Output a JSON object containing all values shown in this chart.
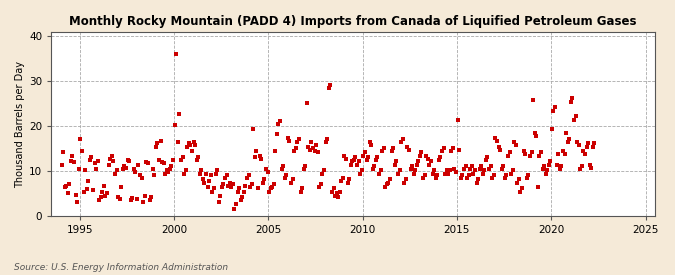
{
  "title": "Monthly Rocky Mountain (PADD 4) Imports from Canada of Liquified Petroleum Gases",
  "ylabel": "Thousand Barrels per Day",
  "source_text": "Source: U.S. Energy Information Administration",
  "figure_bg": "#f5ead8",
  "plot_bg": "#ffffff",
  "marker_color": "#cc0000",
  "xlim": [
    1993.5,
    2025.5
  ],
  "ylim": [
    0,
    41
  ],
  "yticks": [
    0,
    10,
    20,
    30,
    40
  ],
  "xticks": [
    1995,
    2000,
    2005,
    2010,
    2015,
    2020,
    2025
  ],
  "marker_size": 9,
  "data_points": [
    [
      1994.04,
      11.5
    ],
    [
      1994.12,
      14.2
    ],
    [
      1994.21,
      6.5
    ],
    [
      1994.29,
      6.8
    ],
    [
      1994.37,
      5.2
    ],
    [
      1994.46,
      7.1
    ],
    [
      1994.54,
      12.3
    ],
    [
      1994.62,
      13.5
    ],
    [
      1994.71,
      12.1
    ],
    [
      1994.79,
      4.8
    ],
    [
      1994.87,
      3.2
    ],
    [
      1994.96,
      10.5
    ],
    [
      1995.04,
      17.2
    ],
    [
      1995.12,
      14.5
    ],
    [
      1995.21,
      5.5
    ],
    [
      1995.29,
      10.2
    ],
    [
      1995.37,
      6.1
    ],
    [
      1995.46,
      7.8
    ],
    [
      1995.54,
      12.5
    ],
    [
      1995.62,
      13.1
    ],
    [
      1995.71,
      5.9
    ],
    [
      1995.79,
      11.8
    ],
    [
      1995.87,
      10.5
    ],
    [
      1995.96,
      12.2
    ],
    [
      1996.04,
      3.5
    ],
    [
      1996.12,
      4.2
    ],
    [
      1996.21,
      5.5
    ],
    [
      1996.29,
      6.8
    ],
    [
      1996.37,
      4.5
    ],
    [
      1996.46,
      5.2
    ],
    [
      1996.54,
      11.5
    ],
    [
      1996.62,
      12.8
    ],
    [
      1996.71,
      13.5
    ],
    [
      1996.79,
      12.2
    ],
    [
      1996.87,
      9.5
    ],
    [
      1996.96,
      10.2
    ],
    [
      1997.04,
      4.2
    ],
    [
      1997.12,
      3.8
    ],
    [
      1997.21,
      6.5
    ],
    [
      1997.29,
      10.5
    ],
    [
      1997.37,
      11.2
    ],
    [
      1997.46,
      10.8
    ],
    [
      1997.54,
      12.5
    ],
    [
      1997.62,
      12.2
    ],
    [
      1997.71,
      3.5
    ],
    [
      1997.79,
      4.1
    ],
    [
      1997.87,
      10.5
    ],
    [
      1997.96,
      9.8
    ],
    [
      1998.04,
      3.8
    ],
    [
      1998.12,
      11.5
    ],
    [
      1998.21,
      9.2
    ],
    [
      1998.29,
      8.5
    ],
    [
      1998.37,
      3.2
    ],
    [
      1998.46,
      4.5
    ],
    [
      1998.54,
      12.1
    ],
    [
      1998.62,
      11.8
    ],
    [
      1998.71,
      3.5
    ],
    [
      1998.79,
      4.2
    ],
    [
      1998.87,
      10.5
    ],
    [
      1998.96,
      9.2
    ],
    [
      1999.04,
      15.5
    ],
    [
      1999.12,
      16.2
    ],
    [
      1999.21,
      12.5
    ],
    [
      1999.29,
      16.8
    ],
    [
      1999.37,
      12.1
    ],
    [
      1999.46,
      11.8
    ],
    [
      1999.54,
      9.5
    ],
    [
      1999.62,
      10.2
    ],
    [
      1999.71,
      9.8
    ],
    [
      1999.79,
      10.5
    ],
    [
      1999.87,
      11.2
    ],
    [
      1999.96,
      12.5
    ],
    [
      2000.04,
      20.2
    ],
    [
      2000.12,
      36.0
    ],
    [
      2000.21,
      16.5
    ],
    [
      2000.29,
      22.8
    ],
    [
      2000.37,
      12.5
    ],
    [
      2000.46,
      13.2
    ],
    [
      2000.54,
      9.5
    ],
    [
      2000.62,
      10.2
    ],
    [
      2000.71,
      15.5
    ],
    [
      2000.79,
      16.2
    ],
    [
      2000.87,
      15.8
    ],
    [
      2000.96,
      14.5
    ],
    [
      2001.04,
      16.5
    ],
    [
      2001.12,
      15.8
    ],
    [
      2001.21,
      12.5
    ],
    [
      2001.29,
      13.2
    ],
    [
      2001.37,
      9.5
    ],
    [
      2001.46,
      10.2
    ],
    [
      2001.54,
      8.2
    ],
    [
      2001.62,
      7.5
    ],
    [
      2001.71,
      9.5
    ],
    [
      2001.79,
      6.5
    ],
    [
      2001.87,
      7.8
    ],
    [
      2001.96,
      9.2
    ],
    [
      2002.04,
      5.5
    ],
    [
      2002.12,
      6.2
    ],
    [
      2002.21,
      9.5
    ],
    [
      2002.29,
      10.2
    ],
    [
      2002.37,
      3.2
    ],
    [
      2002.46,
      4.5
    ],
    [
      2002.54,
      6.5
    ],
    [
      2002.62,
      7.2
    ],
    [
      2002.71,
      8.5
    ],
    [
      2002.79,
      9.2
    ],
    [
      2002.87,
      6.8
    ],
    [
      2002.96,
      7.5
    ],
    [
      2003.04,
      6.5
    ],
    [
      2003.12,
      7.2
    ],
    [
      2003.21,
      1.5
    ],
    [
      2003.29,
      2.8
    ],
    [
      2003.37,
      5.5
    ],
    [
      2003.46,
      6.2
    ],
    [
      2003.54,
      3.5
    ],
    [
      2003.62,
      4.2
    ],
    [
      2003.71,
      5.5
    ],
    [
      2003.79,
      6.8
    ],
    [
      2003.87,
      8.5
    ],
    [
      2003.96,
      9.2
    ],
    [
      2004.04,
      6.5
    ],
    [
      2004.12,
      7.2
    ],
    [
      2004.21,
      19.5
    ],
    [
      2004.29,
      13.2
    ],
    [
      2004.37,
      14.5
    ],
    [
      2004.46,
      6.2
    ],
    [
      2004.54,
      13.5
    ],
    [
      2004.62,
      12.8
    ],
    [
      2004.71,
      7.5
    ],
    [
      2004.79,
      8.2
    ],
    [
      2004.87,
      10.5
    ],
    [
      2004.96,
      9.8
    ],
    [
      2005.04,
      5.5
    ],
    [
      2005.12,
      6.2
    ],
    [
      2005.21,
      6.5
    ],
    [
      2005.29,
      7.2
    ],
    [
      2005.37,
      14.5
    ],
    [
      2005.46,
      18.2
    ],
    [
      2005.54,
      20.5
    ],
    [
      2005.62,
      21.2
    ],
    [
      2005.71,
      10.5
    ],
    [
      2005.79,
      11.2
    ],
    [
      2005.87,
      8.5
    ],
    [
      2005.96,
      9.2
    ],
    [
      2006.04,
      17.5
    ],
    [
      2006.12,
      16.8
    ],
    [
      2006.21,
      7.5
    ],
    [
      2006.29,
      8.2
    ],
    [
      2006.37,
      14.5
    ],
    [
      2006.46,
      15.2
    ],
    [
      2006.54,
      16.5
    ],
    [
      2006.62,
      17.2
    ],
    [
      2006.71,
      5.5
    ],
    [
      2006.79,
      6.2
    ],
    [
      2006.87,
      10.5
    ],
    [
      2006.96,
      11.2
    ],
    [
      2007.04,
      25.2
    ],
    [
      2007.12,
      15.5
    ],
    [
      2007.21,
      14.8
    ],
    [
      2007.29,
      16.5
    ],
    [
      2007.37,
      15.2
    ],
    [
      2007.46,
      14.5
    ],
    [
      2007.54,
      15.8
    ],
    [
      2007.62,
      14.2
    ],
    [
      2007.71,
      6.5
    ],
    [
      2007.79,
      7.2
    ],
    [
      2007.87,
      9.5
    ],
    [
      2007.96,
      10.2
    ],
    [
      2008.04,
      16.5
    ],
    [
      2008.12,
      17.2
    ],
    [
      2008.21,
      28.5
    ],
    [
      2008.29,
      29.2
    ],
    [
      2008.37,
      5.5
    ],
    [
      2008.46,
      6.2
    ],
    [
      2008.54,
      4.5
    ],
    [
      2008.62,
      5.2
    ],
    [
      2008.71,
      4.2
    ],
    [
      2008.79,
      5.5
    ],
    [
      2008.87,
      7.8
    ],
    [
      2008.96,
      8.5
    ],
    [
      2009.04,
      13.5
    ],
    [
      2009.12,
      12.8
    ],
    [
      2009.21,
      7.5
    ],
    [
      2009.29,
      8.2
    ],
    [
      2009.37,
      11.5
    ],
    [
      2009.46,
      12.2
    ],
    [
      2009.54,
      12.5
    ],
    [
      2009.62,
      13.2
    ],
    [
      2009.71,
      11.5
    ],
    [
      2009.79,
      12.2
    ],
    [
      2009.87,
      9.5
    ],
    [
      2009.96,
      10.2
    ],
    [
      2010.04,
      13.5
    ],
    [
      2010.12,
      14.2
    ],
    [
      2010.21,
      12.5
    ],
    [
      2010.29,
      13.2
    ],
    [
      2010.37,
      16.5
    ],
    [
      2010.46,
      15.8
    ],
    [
      2010.54,
      10.5
    ],
    [
      2010.62,
      11.2
    ],
    [
      2010.71,
      12.5
    ],
    [
      2010.79,
      13.2
    ],
    [
      2010.87,
      9.5
    ],
    [
      2010.96,
      10.2
    ],
    [
      2011.04,
      14.5
    ],
    [
      2011.12,
      15.2
    ],
    [
      2011.21,
      6.5
    ],
    [
      2011.29,
      7.2
    ],
    [
      2011.37,
      7.5
    ],
    [
      2011.46,
      8.2
    ],
    [
      2011.54,
      14.5
    ],
    [
      2011.62,
      15.2
    ],
    [
      2011.71,
      11.5
    ],
    [
      2011.79,
      12.2
    ],
    [
      2011.87,
      9.5
    ],
    [
      2011.96,
      10.2
    ],
    [
      2012.04,
      16.5
    ],
    [
      2012.12,
      17.2
    ],
    [
      2012.21,
      7.5
    ],
    [
      2012.29,
      8.2
    ],
    [
      2012.37,
      15.5
    ],
    [
      2012.46,
      14.8
    ],
    [
      2012.54,
      10.5
    ],
    [
      2012.62,
      11.2
    ],
    [
      2012.71,
      9.5
    ],
    [
      2012.79,
      10.2
    ],
    [
      2012.87,
      11.5
    ],
    [
      2012.96,
      12.2
    ],
    [
      2013.04,
      13.5
    ],
    [
      2013.12,
      14.2
    ],
    [
      2013.21,
      8.5
    ],
    [
      2013.29,
      9.2
    ],
    [
      2013.37,
      13.5
    ],
    [
      2013.46,
      12.8
    ],
    [
      2013.54,
      11.5
    ],
    [
      2013.62,
      12.2
    ],
    [
      2013.71,
      9.5
    ],
    [
      2013.79,
      10.2
    ],
    [
      2013.87,
      8.5
    ],
    [
      2013.96,
      9.2
    ],
    [
      2014.04,
      12.5
    ],
    [
      2014.12,
      13.2
    ],
    [
      2014.21,
      14.5
    ],
    [
      2014.29,
      15.2
    ],
    [
      2014.37,
      9.5
    ],
    [
      2014.46,
      10.2
    ],
    [
      2014.54,
      9.5
    ],
    [
      2014.62,
      10.2
    ],
    [
      2014.71,
      14.5
    ],
    [
      2014.79,
      15.2
    ],
    [
      2014.87,
      10.5
    ],
    [
      2014.96,
      9.8
    ],
    [
      2015.04,
      21.5
    ],
    [
      2015.12,
      14.8
    ],
    [
      2015.21,
      8.5
    ],
    [
      2015.29,
      9.2
    ],
    [
      2015.37,
      10.5
    ],
    [
      2015.46,
      11.2
    ],
    [
      2015.54,
      8.5
    ],
    [
      2015.62,
      9.2
    ],
    [
      2015.71,
      10.5
    ],
    [
      2015.79,
      11.2
    ],
    [
      2015.87,
      9.5
    ],
    [
      2015.96,
      10.2
    ],
    [
      2016.04,
      7.5
    ],
    [
      2016.12,
      8.2
    ],
    [
      2016.21,
      10.5
    ],
    [
      2016.29,
      11.2
    ],
    [
      2016.37,
      9.5
    ],
    [
      2016.46,
      10.2
    ],
    [
      2016.54,
      12.5
    ],
    [
      2016.62,
      13.2
    ],
    [
      2016.71,
      10.5
    ],
    [
      2016.79,
      11.2
    ],
    [
      2016.87,
      8.5
    ],
    [
      2016.96,
      9.2
    ],
    [
      2017.04,
      17.5
    ],
    [
      2017.12,
      16.8
    ],
    [
      2017.21,
      15.5
    ],
    [
      2017.29,
      14.8
    ],
    [
      2017.37,
      10.5
    ],
    [
      2017.46,
      11.2
    ],
    [
      2017.54,
      8.5
    ],
    [
      2017.62,
      9.2
    ],
    [
      2017.71,
      13.5
    ],
    [
      2017.79,
      14.2
    ],
    [
      2017.87,
      9.5
    ],
    [
      2017.96,
      10.2
    ],
    [
      2018.04,
      16.5
    ],
    [
      2018.12,
      15.8
    ],
    [
      2018.21,
      7.5
    ],
    [
      2018.29,
      8.2
    ],
    [
      2018.37,
      5.5
    ],
    [
      2018.46,
      6.2
    ],
    [
      2018.54,
      14.5
    ],
    [
      2018.62,
      13.8
    ],
    [
      2018.71,
      8.5
    ],
    [
      2018.79,
      9.2
    ],
    [
      2018.87,
      13.5
    ],
    [
      2018.96,
      14.2
    ],
    [
      2019.04,
      25.8
    ],
    [
      2019.12,
      18.5
    ],
    [
      2019.21,
      17.8
    ],
    [
      2019.29,
      6.5
    ],
    [
      2019.37,
      13.5
    ],
    [
      2019.46,
      14.2
    ],
    [
      2019.54,
      10.5
    ],
    [
      2019.62,
      11.2
    ],
    [
      2019.71,
      9.5
    ],
    [
      2019.79,
      10.2
    ],
    [
      2019.87,
      11.5
    ],
    [
      2019.96,
      12.2
    ],
    [
      2020.04,
      19.5
    ],
    [
      2020.12,
      23.5
    ],
    [
      2020.21,
      24.2
    ],
    [
      2020.29,
      11.5
    ],
    [
      2020.37,
      13.8
    ],
    [
      2020.46,
      10.5
    ],
    [
      2020.54,
      11.2
    ],
    [
      2020.62,
      14.5
    ],
    [
      2020.71,
      13.8
    ],
    [
      2020.79,
      18.5
    ],
    [
      2020.87,
      16.5
    ],
    [
      2020.96,
      17.2
    ],
    [
      2021.04,
      25.5
    ],
    [
      2021.12,
      26.2
    ],
    [
      2021.21,
      21.5
    ],
    [
      2021.29,
      22.2
    ],
    [
      2021.37,
      16.5
    ],
    [
      2021.46,
      15.8
    ],
    [
      2021.54,
      10.5
    ],
    [
      2021.62,
      11.2
    ],
    [
      2021.71,
      14.5
    ],
    [
      2021.79,
      13.8
    ],
    [
      2021.87,
      15.5
    ],
    [
      2021.96,
      16.2
    ],
    [
      2022.04,
      11.5
    ],
    [
      2022.12,
      10.8
    ],
    [
      2022.21,
      15.5
    ],
    [
      2022.29,
      16.2
    ]
  ]
}
